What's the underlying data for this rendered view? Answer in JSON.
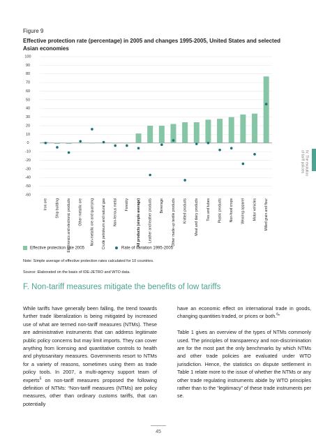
{
  "chart_data": {
    "type": "bar",
    "label": "Figure 9",
    "title": "Effective protection rate (percentage) in 2005 and changes 1995-2005, United States and selected Asian economies",
    "categories": [
      "Iron ore",
      "Ship building",
      "Electronics and electronic products",
      "Other metallic ore",
      "Non-metallic ore and quarrying",
      "Crude petroleum and natural gas",
      "Non-ferrous metal",
      "Forestry",
      "All products (simple average)",
      "Leather and leather products",
      "Beverage",
      "Other made-up textile products",
      "Knitted products",
      "Meat and dairy products",
      "Ties and tubes",
      "Plastic products",
      "Non-food crops",
      "Wearing apparel",
      "Motor vehicles",
      "Milled grain and flour"
    ],
    "bold_categories": [
      8
    ],
    "series": [
      {
        "name": "Effective protection rate 2005",
        "type": "bar",
        "color": "#86c6a6",
        "values": [
          1,
          -1,
          -1,
          0.5,
          0,
          0.5,
          0,
          0,
          11,
          20,
          20,
          22,
          24,
          24,
          27,
          28,
          30,
          33,
          34,
          77
        ]
      },
      {
        "name": "Rate of variation 1995-2005",
        "type": "dot",
        "color": "#1d6f78",
        "values": [
          0,
          -5,
          -11,
          2,
          16,
          1,
          -3,
          -3,
          -6,
          -37,
          -2,
          3,
          -43,
          -1,
          0,
          -8,
          -6,
          -24,
          -13,
          45
        ]
      }
    ],
    "ylim": [
      -60,
      100
    ],
    "yticks": [
      -60,
      -50,
      -40,
      -30,
      -20,
      -10,
      0,
      10,
      20,
      30,
      40,
      50,
      60,
      70,
      80,
      90,
      100
    ],
    "grid": true,
    "note": "Note: Simple average of effective protection rates calculated for 10 countries.",
    "source": "Source: Elaborated on the basis of IDE-JETRO and WTO data."
  },
  "side_tab": [
    "IV. The evolution",
    "of tariff policies"
  ],
  "heading": "F. Non-tariff measures mitigate the benefits of low tariffs",
  "left_column": [
    "While tariffs have generally been falling, the trend towards further trade liberalization is being mitigated by increased use of what are termed non-tariff measures (NTMs). These are administrative instruments that can address legitimate public policy concerns but may limit imports. They can cover anything from licensing and quantitative controls to health and phytosanitary measures. Governments resort to NTMs for a variety of reasons, sometimes using them as trade policy tools. In 2007, a multi-agency support team of experts",
    "5",
    " on non-tariff measures proposed the following definition of NTMs: “Non-tariff measures (NTMs) are policy measures, other than ordinary customs tariffs, that can potentially"
  ],
  "right_column": [
    [
      "have an economic effect on international trade in goods, changing quantities traded, or prices or both.",
      "6",
      "”"
    ],
    "Table 1 gives an overview of the types of NTMs commonly used. The principles of transparency and non-discrimination are for the most part the only benchmarks by which NTMs and other trade policies are evaluated under WTO jurisdiction. Hence, the statistics on dispute settlement in Table 1 relate more to the issue of whether the NTMs or any other trade regulating instruments abide by WTO principles rather than to the “legitimacy” of these trade instruments per se."
  ],
  "page_number": "45"
}
